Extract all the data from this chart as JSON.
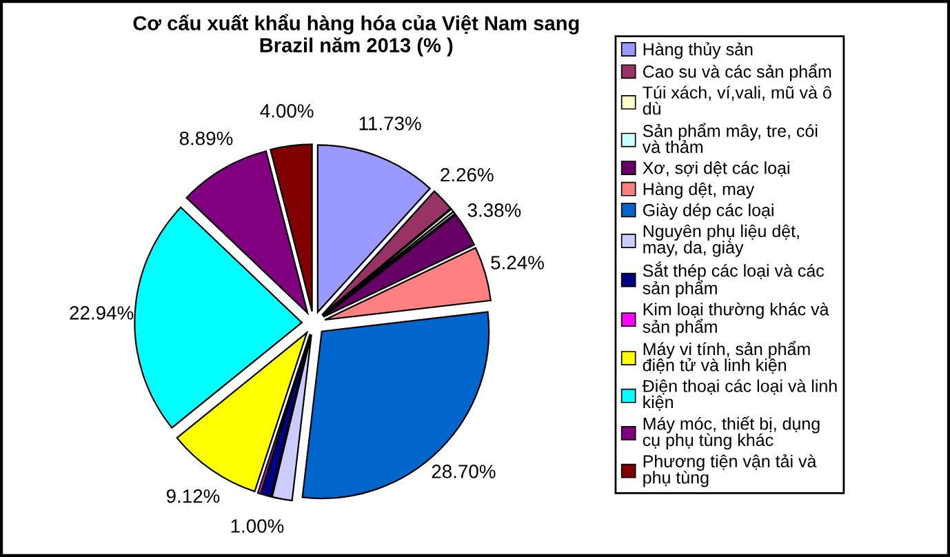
{
  "chart_data": {
    "type": "pie",
    "title": "Cơ cấu xuất khẩu hàng hóa của Việt Nam sang\nBrazil năm 2013 (% )",
    "categories": [
      "Hàng thủy sản",
      "Cao su và các sản phẩm",
      "Túi xách, ví,vali, mũ và ô\ndù",
      "Sản phẩm mây, tre, cói\nvà thảm",
      "Xơ, sợi dệt các loại",
      "Hàng dệt, may",
      "Giày dép các loại",
      "Nguyên phụ liệu dệt,\nmay, da, giày",
      "Sắt thép các loại và các\nsản phẩm",
      "Kim loại thường khác và\nsản phẩm",
      "Máy vi tính, sản phẩm\nđiện tử và linh kiện",
      "Điện thoại các loại và linh\nkiện",
      "Máy móc, thiết bị, dụng\ncụ phụ tùng khác",
      "Phương tiện vận tải và\nphụ tùng"
    ],
    "values": [
      11.73,
      2.26,
      0.31,
      0.23,
      3.38,
      5.24,
      28.7,
      1.93,
      1.0,
      0.27,
      9.12,
      22.94,
      8.89,
      4.0
    ],
    "colors": [
      "#9999ff",
      "#993366",
      "#ffffcc",
      "#ccffff",
      "#660066",
      "#ff8080",
      "#0066cc",
      "#ccccff",
      "#000080",
      "#ff00ff",
      "#ffff00",
      "#00ffff",
      "#800080",
      "#800000"
    ],
    "value_labels": [
      "11.73%",
      "2.26%",
      null,
      null,
      "3.38%",
      "5.24%",
      "28.70%",
      null,
      "1.00%",
      null,
      "9.12%",
      "22.94%",
      "8.89%",
      "4.00%"
    ],
    "legend": "right"
  }
}
